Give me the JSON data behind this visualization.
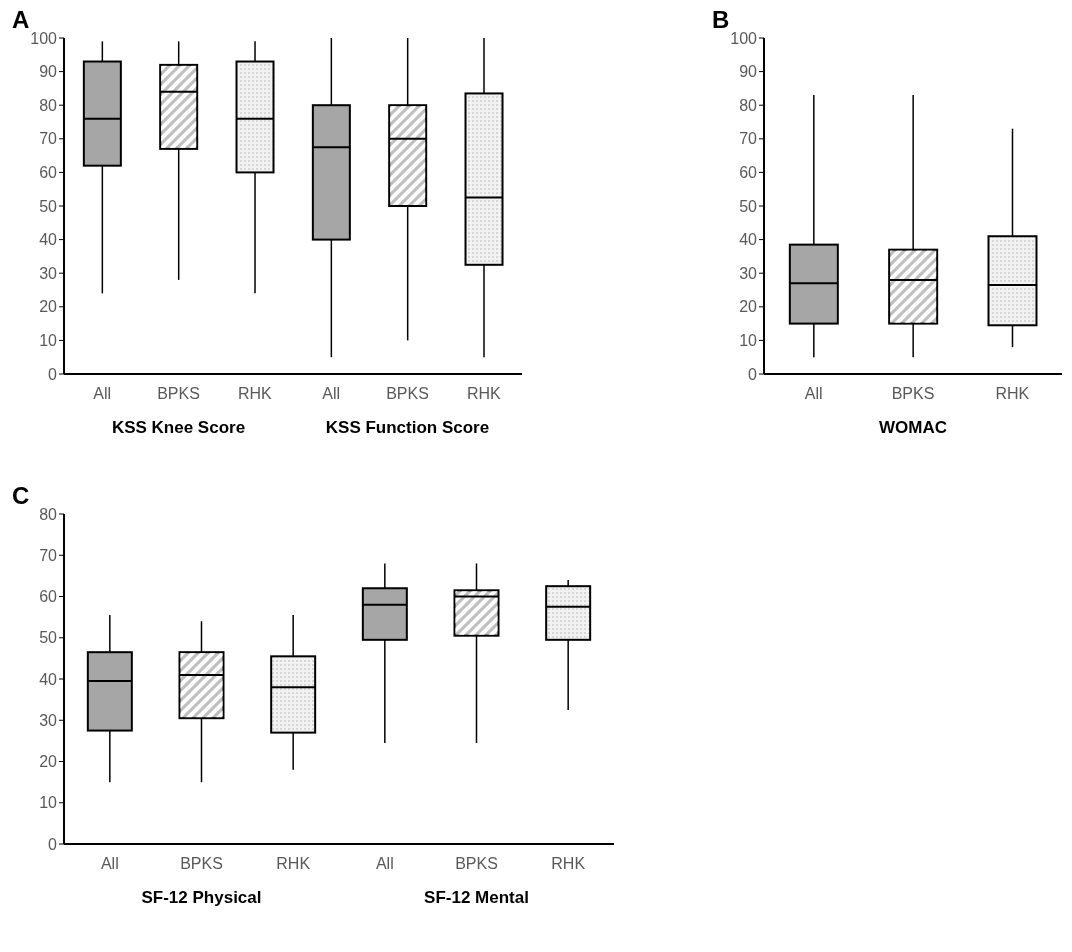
{
  "chart_data": [
    {
      "type": "box",
      "title": "A",
      "categories": [
        "All",
        "BPKS",
        "RHK",
        "All",
        "BPKS",
        "RHK"
      ],
      "annotations": [
        "KSS Knee Score",
        "KSS Function Score"
      ],
      "colors": [
        "#a6a6a6",
        "#bfbfbf",
        "#f2f2f2",
        "#a6a6a6",
        "#bfbfbf",
        "#f2f2f2"
      ],
      "ylim": [
        0,
        100
      ],
      "yticks": [
        0,
        10,
        20,
        30,
        40,
        50,
        60,
        70,
        80,
        90,
        100
      ],
      "boxes": [
        {
          "low": 24,
          "q1": 62,
          "median": 76,
          "q3": 93,
          "high": 99
        },
        {
          "low": 28,
          "q1": 67,
          "median": 84,
          "q3": 92,
          "high": 99
        },
        {
          "low": 24,
          "q1": 60,
          "median": 76,
          "q3": 93,
          "high": 99
        },
        {
          "low": 5,
          "q1": 40,
          "median": 67.5,
          "q3": 80,
          "high": 100
        },
        {
          "low": 10,
          "q1": 50,
          "median": 70,
          "q3": 80,
          "high": 100
        },
        {
          "low": 5,
          "q1": 32.5,
          "median": 52.5,
          "q3": 83.5,
          "high": 100
        }
      ]
    },
    {
      "type": "box",
      "title": "B",
      "categories": [
        "All",
        "BPKS",
        "RHK"
      ],
      "xlabel": "WOMAC",
      "colors": [
        "#a6a6a6",
        "#bfbfbf",
        "#f2f2f2"
      ],
      "ylim": [
        0,
        100
      ],
      "yticks": [
        0,
        10,
        20,
        30,
        40,
        50,
        60,
        70,
        80,
        90,
        100
      ],
      "boxes": [
        {
          "low": 5,
          "q1": 15,
          "median": 27,
          "q3": 38.5,
          "high": 83
        },
        {
          "low": 5,
          "q1": 15,
          "median": 28,
          "q3": 37,
          "high": 83
        },
        {
          "low": 8,
          "q1": 14.5,
          "median": 26.5,
          "q3": 41,
          "high": 73
        }
      ]
    },
    {
      "type": "box",
      "title": "C",
      "categories": [
        "All",
        "BPKS",
        "RHK",
        "All",
        "BPKS",
        "RHK"
      ],
      "annotations": [
        "SF-12 Physical",
        "SF-12 Mental"
      ],
      "colors": [
        "#a6a6a6",
        "#bfbfbf",
        "#f2f2f2",
        "#a6a6a6",
        "#bfbfbf",
        "#f2f2f2"
      ],
      "ylim": [
        0,
        80
      ],
      "yticks": [
        0,
        10,
        20,
        30,
        40,
        50,
        60,
        70,
        80
      ],
      "boxes": [
        {
          "low": 15,
          "q1": 27.5,
          "median": 39.5,
          "q3": 46.5,
          "high": 55.5
        },
        {
          "low": 15,
          "q1": 30.5,
          "median": 41,
          "q3": 46.5,
          "high": 54
        },
        {
          "low": 18,
          "q1": 27,
          "median": 38,
          "q3": 45.5,
          "high": 55.5
        },
        {
          "low": 24.5,
          "q1": 49.5,
          "median": 58,
          "q3": 62,
          "high": 68
        },
        {
          "low": 24.5,
          "q1": 50.5,
          "median": 60,
          "q3": 61.5,
          "high": 68
        },
        {
          "low": 32.5,
          "q1": 49.5,
          "median": 57.5,
          "q3": 62.5,
          "high": 64
        }
      ]
    }
  ]
}
